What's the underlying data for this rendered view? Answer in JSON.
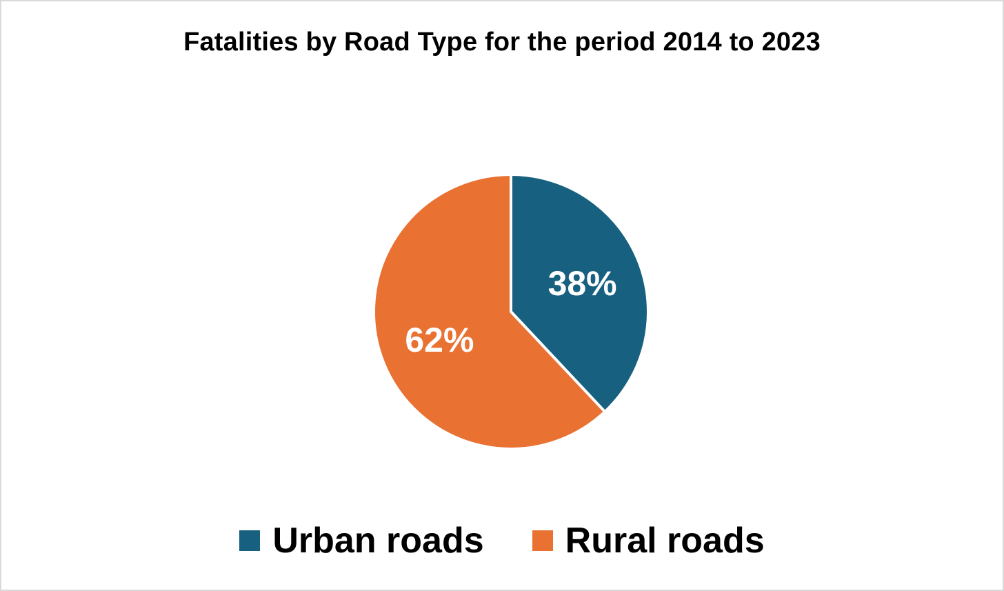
{
  "chart_data": {
    "type": "pie",
    "title": "Fatalities by Road Type for the period 2014 to 2023",
    "series": [
      {
        "name": "Fatalities",
        "slices": [
          {
            "label": "Urban roads",
            "value": 38,
            "value_label": "38%",
            "color": "#17607f"
          },
          {
            "label": "Rural roads",
            "value": 62,
            "value_label": "62%",
            "color": "#e97132"
          }
        ]
      }
    ],
    "legend_position": "bottom",
    "start_angle_deg": 0,
    "direction": "clockwise"
  }
}
